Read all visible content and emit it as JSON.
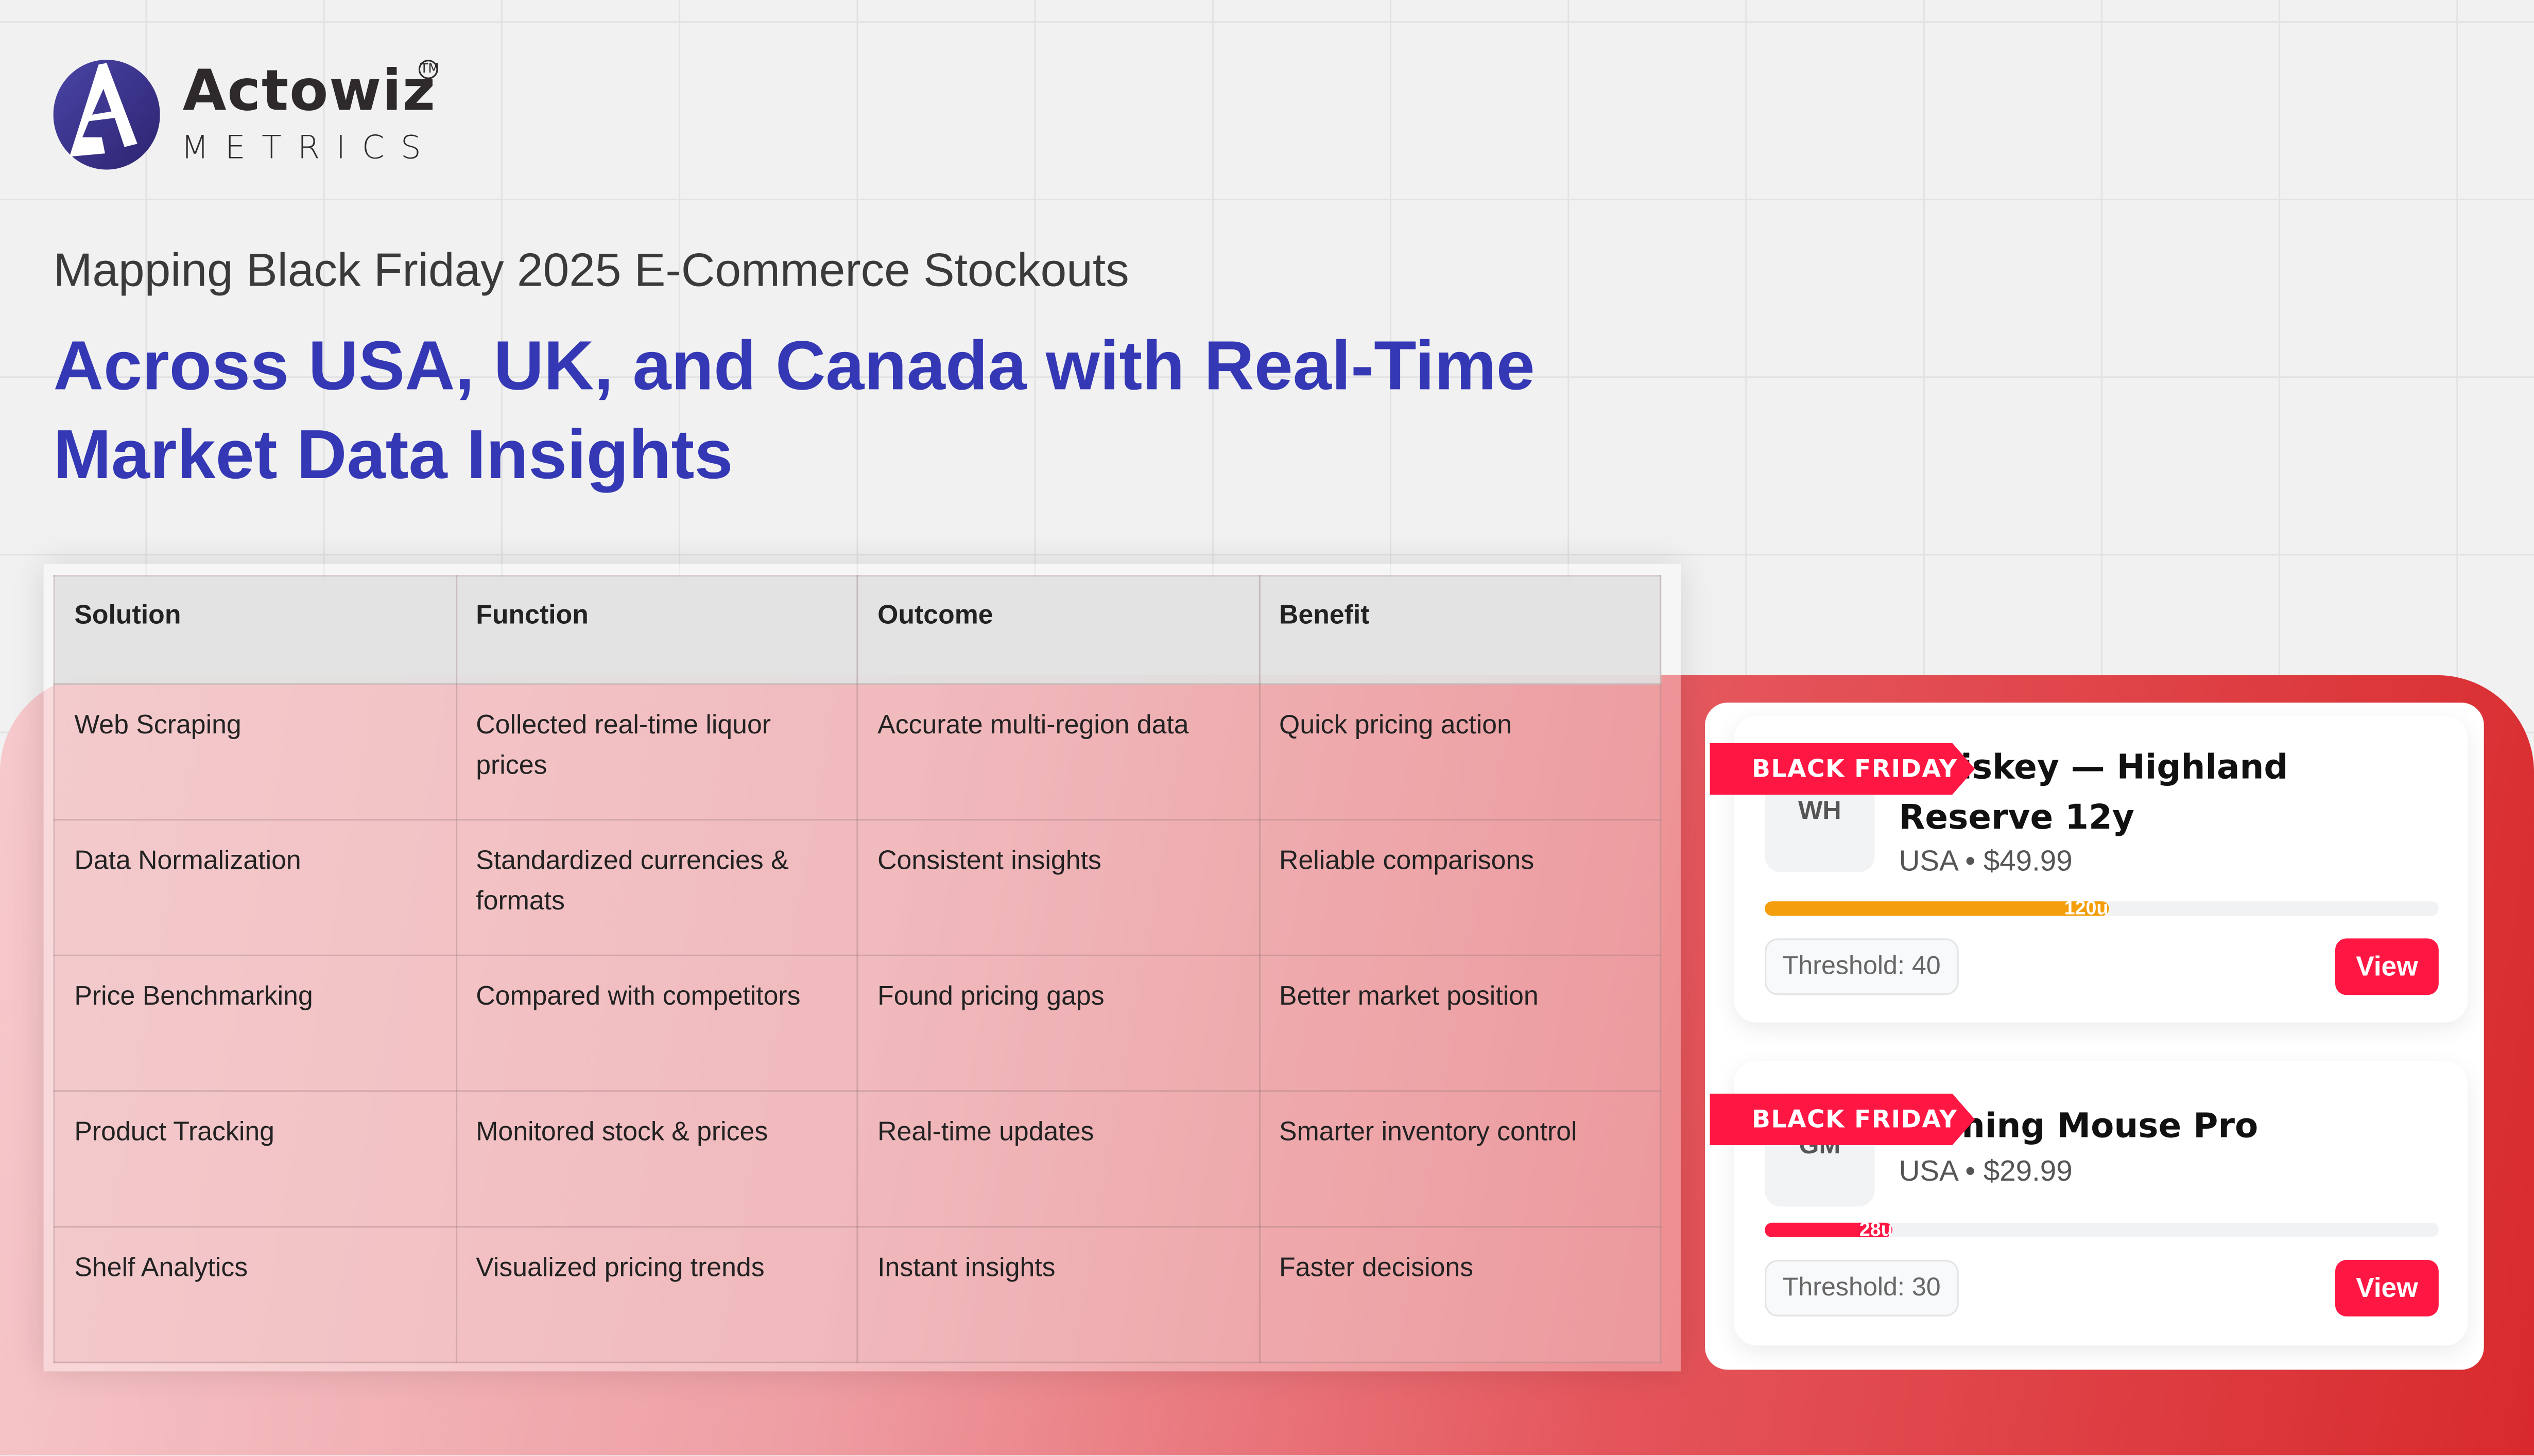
{
  "brand": {
    "name": "Actowiz",
    "tagline": "METRICS",
    "trademark": "TM"
  },
  "header": {
    "subtitle": "Mapping Black Friday 2025 E-Commerce Stockouts",
    "title": "Across USA, UK, and Canada with Real-Time Market Data Insights"
  },
  "table": {
    "columns": [
      "Solution",
      "Function",
      "Outcome",
      "Benefit"
    ],
    "rows": [
      [
        "Web Scraping",
        "Collected real-time liquor prices",
        "Accurate multi-region data",
        "Quick pricing action"
      ],
      [
        "Data Normalization",
        "Standardized currencies & formats",
        "Consistent insights",
        "Reliable comparisons"
      ],
      [
        "Price Benchmarking",
        "Compared with competitors",
        "Found pricing gaps",
        "Better market position"
      ],
      [
        "Product Tracking",
        "Monitored stock & prices",
        "Real-time updates",
        "Smarter inventory control"
      ],
      [
        "Shelf Analytics",
        "Visualized pricing trends",
        "Instant insights",
        "Faster decisions"
      ]
    ]
  },
  "cards": [
    {
      "badge": "BLACK FRIDAY",
      "initials": "WH",
      "name": "Whiskey — Highland Reserve 12y",
      "meta": "USA • $49.99",
      "stock_label": "120u",
      "stock_percent": 51,
      "bar_color": "#f59e0b",
      "threshold": "Threshold: 40",
      "action": "View"
    },
    {
      "badge": "BLACK FRIDAY",
      "initials": "GM",
      "name": "Gaming Mouse Pro",
      "meta": "USA • $29.99",
      "stock_label": "28u",
      "stock_percent": 19,
      "bar_color": "#ff1744",
      "threshold": "Threshold: 30",
      "action": "View"
    }
  ],
  "colors": {
    "accent": "#3438b4",
    "badge": "#ff1744"
  }
}
